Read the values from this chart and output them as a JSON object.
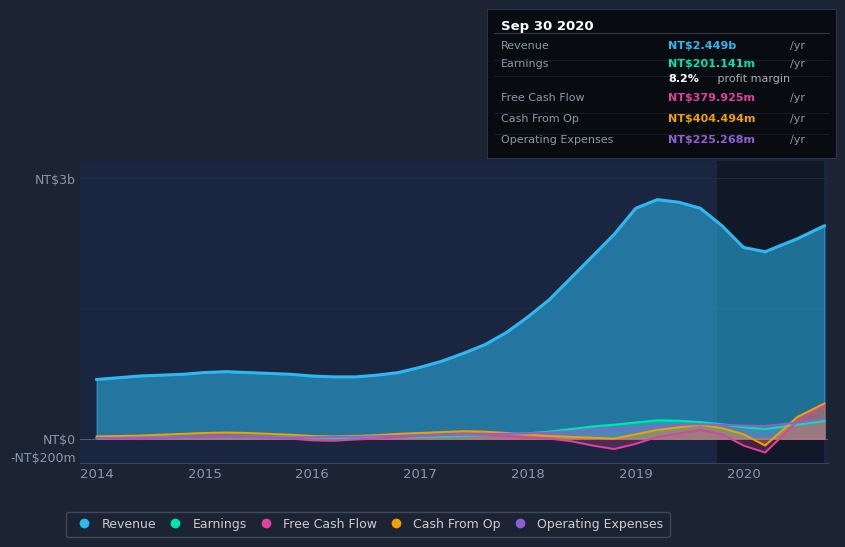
{
  "bg_color": "#1c2333",
  "plot_bg_color": "#1a2540",
  "years_x": [
    2014.0,
    2014.2,
    2014.4,
    2014.6,
    2014.8,
    2015.0,
    2015.2,
    2015.4,
    2015.6,
    2015.8,
    2016.0,
    2016.2,
    2016.4,
    2016.6,
    2016.8,
    2017.0,
    2017.2,
    2017.4,
    2017.6,
    2017.8,
    2018.0,
    2018.2,
    2018.4,
    2018.6,
    2018.8,
    2019.0,
    2019.2,
    2019.4,
    2019.6,
    2019.8,
    2020.0,
    2020.2,
    2020.5,
    2020.75
  ],
  "revenue": [
    680,
    700,
    720,
    730,
    740,
    760,
    770,
    760,
    750,
    740,
    720,
    710,
    710,
    730,
    760,
    820,
    890,
    980,
    1080,
    1220,
    1400,
    1600,
    1850,
    2100,
    2350,
    2650,
    2750,
    2720,
    2650,
    2450,
    2200,
    2150,
    2300,
    2449
  ],
  "earnings": [
    5,
    8,
    10,
    12,
    15,
    20,
    22,
    20,
    18,
    15,
    10,
    8,
    8,
    10,
    15,
    20,
    25,
    30,
    40,
    50,
    60,
    80,
    110,
    140,
    160,
    185,
    210,
    205,
    190,
    165,
    130,
    110,
    160,
    201
  ],
  "free_cash_flow": [
    5,
    0,
    -5,
    5,
    15,
    25,
    30,
    20,
    10,
    0,
    -20,
    -25,
    -10,
    0,
    15,
    30,
    40,
    50,
    45,
    30,
    10,
    0,
    -30,
    -80,
    -120,
    -60,
    20,
    60,
    100,
    50,
    -80,
    -160,
    200,
    380
  ],
  "cash_from_op": [
    25,
    30,
    35,
    45,
    55,
    65,
    70,
    65,
    55,
    45,
    30,
    25,
    30,
    40,
    55,
    65,
    75,
    85,
    80,
    65,
    45,
    30,
    20,
    10,
    0,
    50,
    100,
    130,
    160,
    120,
    50,
    -80,
    250,
    404
  ],
  "operating_expenses": [
    5,
    8,
    10,
    12,
    15,
    18,
    20,
    18,
    15,
    12,
    15,
    18,
    20,
    25,
    30,
    35,
    40,
    45,
    50,
    55,
    60,
    70,
    85,
    100,
    115,
    130,
    150,
    160,
    165,
    160,
    150,
    145,
    185,
    225
  ],
  "revenue_color": "#2eb8f0",
  "earnings_color": "#00e5b0",
  "free_cash_flow_color": "#e040a0",
  "cash_from_op_color": "#f0a000",
  "operating_expenses_color": "#9060d0",
  "highlight_start": 2019.75,
  "highlight_end": 2020.75,
  "xlim_start": 2013.85,
  "xlim_end": 2020.78,
  "ylim_min": -280,
  "ylim_max": 3200,
  "xticks": [
    2014,
    2015,
    2016,
    2017,
    2018,
    2019,
    2020
  ],
  "ytick_3b_val": 3000,
  "ytick_0_val": 0,
  "ytick_neg200_val": -200,
  "ytick_3b_label": "NT$3b",
  "ytick_0_label": "NT$0",
  "ytick_neg200_label": "-NT$200m",
  "tooltip_title": "Sep 30 2020",
  "tooltip_rows": [
    {
      "label": "Revenue",
      "value": "NT$2.449b",
      "suffix": "/yr",
      "value_color": "#2eb8f0"
    },
    {
      "label": "Earnings",
      "value": "NT$201.141m",
      "suffix": "/yr",
      "value_color": "#00e5b0"
    },
    {
      "label": "",
      "value": "8.2%",
      "suffix": " profit margin",
      "value_color": "#ffffff"
    },
    {
      "label": "Free Cash Flow",
      "value": "NT$379.925m",
      "suffix": "/yr",
      "value_color": "#e040a0"
    },
    {
      "label": "Cash From Op",
      "value": "NT$404.494m",
      "suffix": "/yr",
      "value_color": "#f0a000"
    },
    {
      "label": "Operating Expenses",
      "value": "NT$225.268m",
      "suffix": "/yr",
      "value_color": "#9060d0"
    }
  ],
  "legend_items": [
    "Revenue",
    "Earnings",
    "Free Cash Flow",
    "Cash From Op",
    "Operating Expenses"
  ],
  "legend_colors": [
    "#2eb8f0",
    "#00e5b0",
    "#e040a0",
    "#f0a000",
    "#9060d0"
  ],
  "grid_color": "#263050",
  "tick_color": "#8899aa",
  "zero_line_color": "#aaaaaa"
}
